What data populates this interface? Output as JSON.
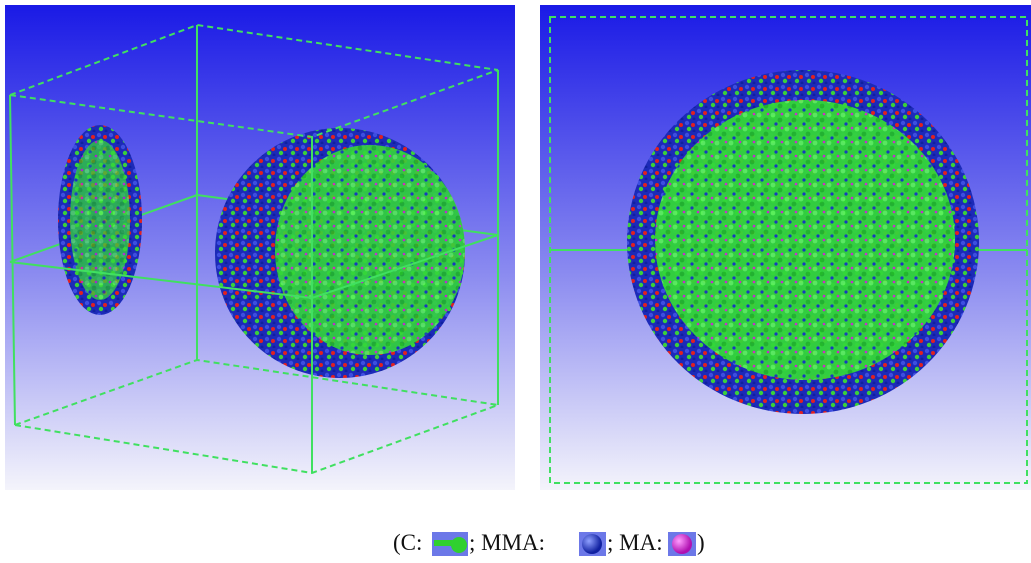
{
  "legend": {
    "items": [
      {
        "label": "(C:"
      },
      {
        "label": "; MMA:"
      },
      {
        "label": "; MA:"
      },
      {
        "label": ")"
      }
    ]
  }
}
